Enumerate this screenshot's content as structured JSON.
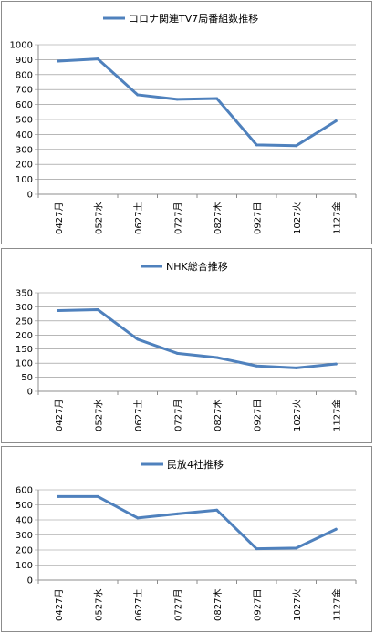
{
  "series_color": "#4f81bd",
  "chart_data": [
    {
      "type": "line",
      "title": "",
      "legend": "コロナ関連TV7局番組数推移",
      "categories": [
        "0427月",
        "0527水",
        "0627土",
        "0727月",
        "0827木",
        "0927日",
        "1027火",
        "1127金"
      ],
      "series": [
        {
          "name": "コロナ関連TV7局番組数推移",
          "values": [
            890,
            905,
            665,
            635,
            640,
            330,
            325,
            490
          ]
        }
      ],
      "ylim": [
        0,
        1000
      ],
      "yticks": [
        0,
        100,
        200,
        300,
        400,
        500,
        600,
        700,
        800,
        900,
        1000
      ],
      "grid": true,
      "legend_position": "top"
    },
    {
      "type": "line",
      "title": "",
      "legend": "NHK総合推移",
      "categories": [
        "0427月",
        "0527水",
        "0627土",
        "0727月",
        "0827木",
        "0927日",
        "1027火",
        "1127金"
      ],
      "series": [
        {
          "name": "NHK総合推移",
          "values": [
            287,
            290,
            185,
            135,
            120,
            90,
            83,
            97
          ]
        }
      ],
      "ylim": [
        0,
        350
      ],
      "yticks": [
        0,
        50,
        100,
        150,
        200,
        250,
        300,
        350
      ],
      "grid": true,
      "legend_position": "top"
    },
    {
      "type": "line",
      "title": "",
      "legend": "民放4社推移",
      "categories": [
        "0427月",
        "0527水",
        "0627土",
        "0727月",
        "0827木",
        "0927日",
        "1027火",
        "1127金"
      ],
      "series": [
        {
          "name": "民放4社推移",
          "values": [
            555,
            555,
            413,
            440,
            465,
            208,
            213,
            338
          ]
        }
      ],
      "ylim": [
        0,
        600
      ],
      "yticks": [
        0,
        100,
        200,
        300,
        400,
        500,
        600
      ],
      "grid": true,
      "legend_position": "top"
    }
  ]
}
